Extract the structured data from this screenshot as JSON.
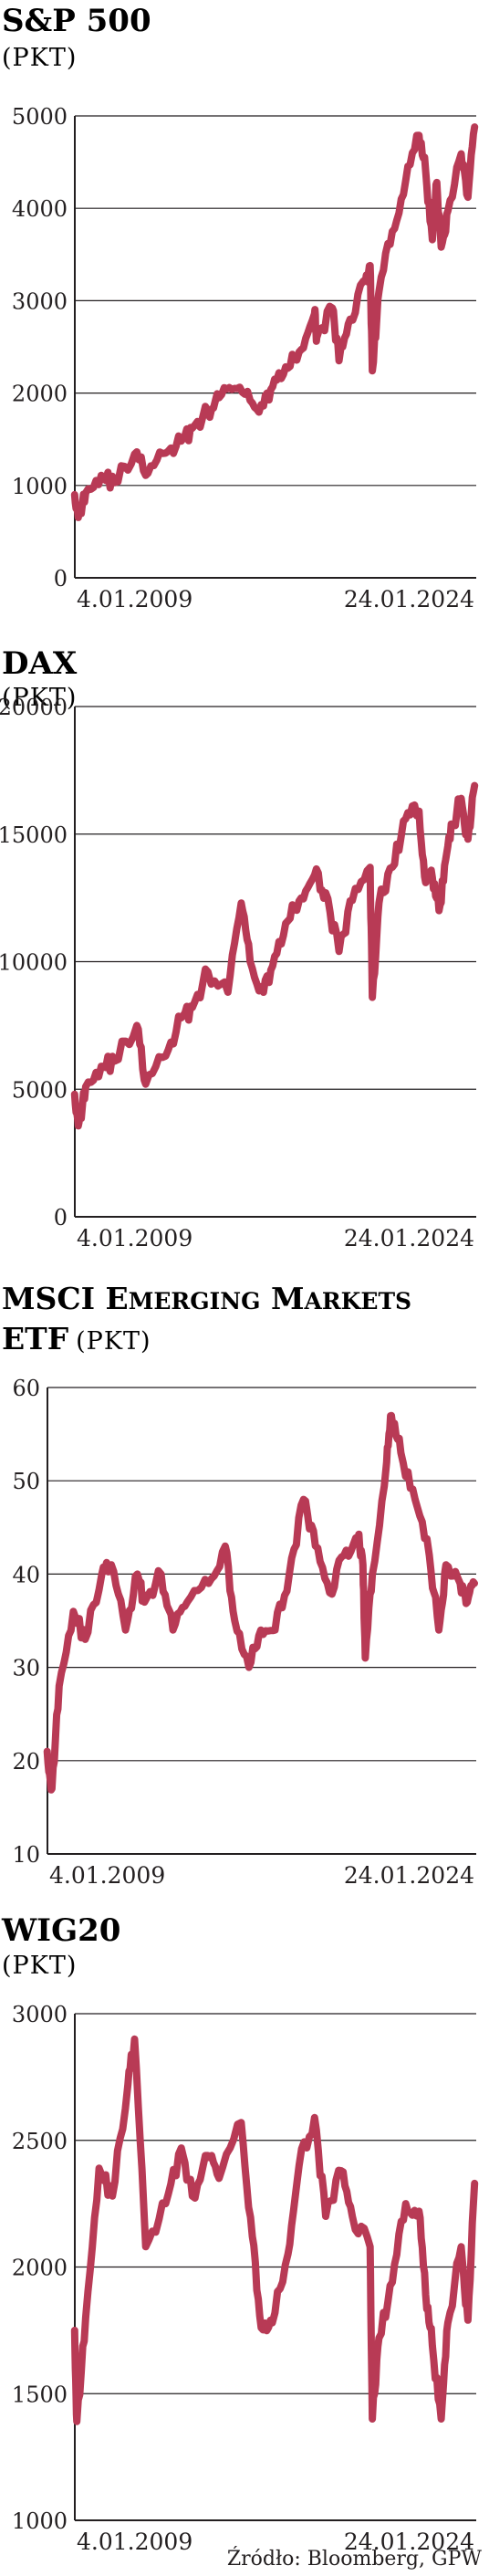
{
  "source": "Źródło: Bloomberg, GPW",
  "chart_data": [
    {
      "type": "line",
      "title": "S&P 500",
      "unit": "(PKT)",
      "ylim": [
        0,
        5000
      ],
      "yticks": [
        0,
        1000,
        2000,
        3000,
        4000,
        5000
      ],
      "xlim": [
        "2009-01-04",
        "2024-01-24"
      ],
      "xtick_labels": [
        "4.01.2009",
        "24.01.2024"
      ],
      "grid": true,
      "color": "#b83a55",
      "series": [
        {
          "x": [
            "2009-01",
            "2009-03",
            "2009-06",
            "2010-01",
            "2010-07",
            "2011-04",
            "2011-10",
            "2012-06",
            "2013-01",
            "2013-06",
            "2014-01",
            "2014-06",
            "2015-01",
            "2015-08",
            "2016-02",
            "2016-07",
            "2017-01",
            "2017-07",
            "2018-01",
            "2018-02",
            "2018-09",
            "2018-12",
            "2019-05",
            "2019-12",
            "2020-02",
            "2020-03",
            "2020-06",
            "2020-12",
            "2021-06",
            "2021-12",
            "2022-03",
            "2022-06",
            "2022-08",
            "2022-10",
            "2023-01",
            "2023-07",
            "2023-10",
            "2024-01"
          ],
          "values": [
            900,
            700,
            920,
            1110,
            1030,
            1340,
            1130,
            1350,
            1480,
            1620,
            1800,
            1950,
            2050,
            1920,
            1860,
            2150,
            2270,
            2470,
            2860,
            2600,
            2920,
            2350,
            2800,
            3230,
            3380,
            2240,
            3100,
            3750,
            4300,
            4790,
            4400,
            3660,
            4280,
            3580,
            3970,
            4590,
            4120,
            4880
          ]
        }
      ]
    },
    {
      "type": "line",
      "title": "DAX",
      "unit": "(PKT)",
      "ylim": [
        0,
        20000
      ],
      "yticks": [
        0,
        5000,
        10000,
        15000,
        20000
      ],
      "xlim": [
        "2009-01-04",
        "2024-01-24"
      ],
      "xtick_labels": [
        "4.01.2009",
        "24.01.2024"
      ],
      "grid": true,
      "color": "#b83a55",
      "series": [
        {
          "x": [
            "2009-01",
            "2009-03",
            "2009-06",
            "2010-01",
            "2010-07",
            "2011-05",
            "2011-09",
            "2012-06",
            "2013-01",
            "2013-06",
            "2014-01",
            "2014-10",
            "2015-04",
            "2015-08",
            "2016-02",
            "2016-07",
            "2017-01",
            "2017-07",
            "2018-01",
            "2018-06",
            "2018-12",
            "2019-06",
            "2020-02",
            "2020-03",
            "2020-06",
            "2020-12",
            "2021-06",
            "2021-12",
            "2022-03",
            "2022-06",
            "2022-09",
            "2022-12",
            "2023-03",
            "2023-07",
            "2023-10",
            "2024-01"
          ],
          "values": [
            4800,
            3700,
            5100,
            5900,
            6100,
            7500,
            5200,
            6300,
            7800,
            8200,
            9600,
            8800,
            12300,
            10000,
            8800,
            10200,
            11600,
            12500,
            13400,
            12700,
            10400,
            12400,
            13700,
            8600,
            12300,
            13700,
            15600,
            15900,
            13100,
            13300,
            12000,
            14000,
            15300,
            16400,
            14800,
            16900
          ]
        }
      ]
    },
    {
      "type": "line",
      "title": "MSCI Emerging Markets ETF",
      "unit": "(PKT)",
      "ylim": [
        10,
        60
      ],
      "yticks": [
        10,
        20,
        30,
        40,
        50,
        60
      ],
      "xlim": [
        "2009-01-04",
        "2024-01-24"
      ],
      "xtick_labels": [
        "4.01.2009",
        "24.01.2024"
      ],
      "grid": true,
      "color": "#b83a55",
      "series": [
        {
          "x": [
            "2009-01",
            "2009-03",
            "2009-06",
            "2009-12",
            "2010-05",
            "2010-12",
            "2011-04",
            "2011-10",
            "2012-03",
            "2012-06",
            "2013-01",
            "2013-06",
            "2013-12",
            "2014-09",
            "2015-04",
            "2015-08",
            "2016-02",
            "2016-07",
            "2017-01",
            "2017-07",
            "2018-01",
            "2018-06",
            "2018-12",
            "2019-06",
            "2019-12",
            "2020-02",
            "2020-03",
            "2020-06",
            "2020-12",
            "2021-02",
            "2021-06",
            "2021-12",
            "2022-06",
            "2022-10",
            "2023-01",
            "2023-07",
            "2023-10",
            "2024-01"
          ],
          "values": [
            21,
            17,
            28,
            36,
            33,
            40,
            41,
            34,
            40,
            37,
            40,
            34,
            37,
            39,
            43,
            35,
            30,
            34,
            34,
            40,
            48,
            43,
            38,
            42,
            44,
            41,
            31,
            40,
            52,
            57,
            53,
            48,
            42,
            34,
            41,
            39,
            37,
            39
          ]
        }
      ]
    },
    {
      "type": "line",
      "title": "WIG20",
      "unit": "(PKT)",
      "ylim": [
        1000,
        3000
      ],
      "yticks": [
        1000,
        1500,
        2000,
        2500,
        3000
      ],
      "xlim": [
        "2009-01-04",
        "2024-01-24"
      ],
      "xtick_labels": [
        "4.01.2009",
        "24.01.2024"
      ],
      "grid": true,
      "color": "#b83a55",
      "series": [
        {
          "x": [
            "2009-01",
            "2009-02",
            "2009-06",
            "2009-12",
            "2010-06",
            "2011-01",
            "2011-04",
            "2011-09",
            "2012-06",
            "2013-01",
            "2013-06",
            "2014-01",
            "2014-06",
            "2015-04",
            "2015-09",
            "2016-01",
            "2016-06",
            "2017-01",
            "2017-06",
            "2018-01",
            "2018-06",
            "2019-01",
            "2019-06",
            "2020-02",
            "2020-03",
            "2020-06",
            "2020-12",
            "2021-06",
            "2021-12",
            "2022-03",
            "2022-06",
            "2022-10",
            "2023-01",
            "2023-07",
            "2023-10",
            "2024-01"
          ],
          "values": [
            1750,
            1390,
            1800,
            2390,
            2280,
            2720,
            2900,
            2080,
            2250,
            2470,
            2280,
            2440,
            2350,
            2570,
            2120,
            1760,
            1780,
            2050,
            2400,
            2590,
            2200,
            2380,
            2200,
            2080,
            1400,
            1720,
            1940,
            2250,
            2220,
            1890,
            1690,
            1400,
            1780,
            2080,
            1790,
            2330
          ]
        }
      ]
    }
  ]
}
